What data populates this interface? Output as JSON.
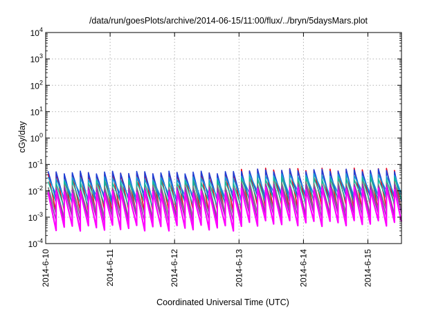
{
  "chart_data": {
    "type": "line",
    "title": "/data/run/goesPlots/archive/2014-06-15/11:00/flux/../bryn/5daysMars.plot",
    "xlabel": "Coordinated Universal Time (UTC)",
    "ylabel": "cGy/day",
    "yscale": "log",
    "ylim": [
      0.0001,
      10000
    ],
    "xlim": [
      "2014-06-10T00:00",
      "2014-06-15T12:30"
    ],
    "grid": true,
    "legend": "none",
    "y_ticks": [
      {
        "base": "10",
        "exp": "-4"
      },
      {
        "base": "10",
        "exp": "-3"
      },
      {
        "base": "10",
        "exp": "-2"
      },
      {
        "base": "10",
        "exp": "-1"
      },
      {
        "base": "10",
        "exp": "0"
      },
      {
        "base": "10",
        "exp": "1"
      },
      {
        "base": "10",
        "exp": "2"
      },
      {
        "base": "10",
        "exp": "3"
      },
      {
        "base": "10",
        "exp": "4"
      }
    ],
    "x_ticks": [
      "2014-6-10",
      "2014-6-11",
      "2014-6-12",
      "2014-6-13",
      "2014-6-14",
      "2014-6-15"
    ],
    "sawtooth_period_hours": 3,
    "series": [
      {
        "color": "#e8001c",
        "peak_before": 0.045,
        "peak_after": 0.065,
        "trough_before": 0.0015,
        "trough_after": 0.0022
      },
      {
        "color": "#1f3fd6",
        "peak_before": 0.05,
        "peak_after": 0.06,
        "trough_before": 0.004,
        "trough_after": 0.005
      },
      {
        "color": "#1a9bd6",
        "peak_before": 0.03,
        "peak_after": 0.04,
        "trough_before": 0.006,
        "trough_after": 0.008
      },
      {
        "color": "#14b89a",
        "peak_before": 0.022,
        "peak_after": 0.03,
        "trough_before": 0.003,
        "trough_after": 0.004
      },
      {
        "color": "#7a7a7a",
        "peak_before": 0.015,
        "peak_after": 0.02,
        "trough_before": 0.0012,
        "trough_after": 0.0016
      },
      {
        "color": "#9b2fb8",
        "peak_before": 0.012,
        "peak_after": 0.016,
        "trough_before": 0.0008,
        "trough_after": 0.0011
      },
      {
        "color": "#ff00ff",
        "peak_before": 0.009,
        "peak_after": 0.012,
        "trough_before": 0.0004,
        "trough_after": 0.0006
      }
    ]
  }
}
